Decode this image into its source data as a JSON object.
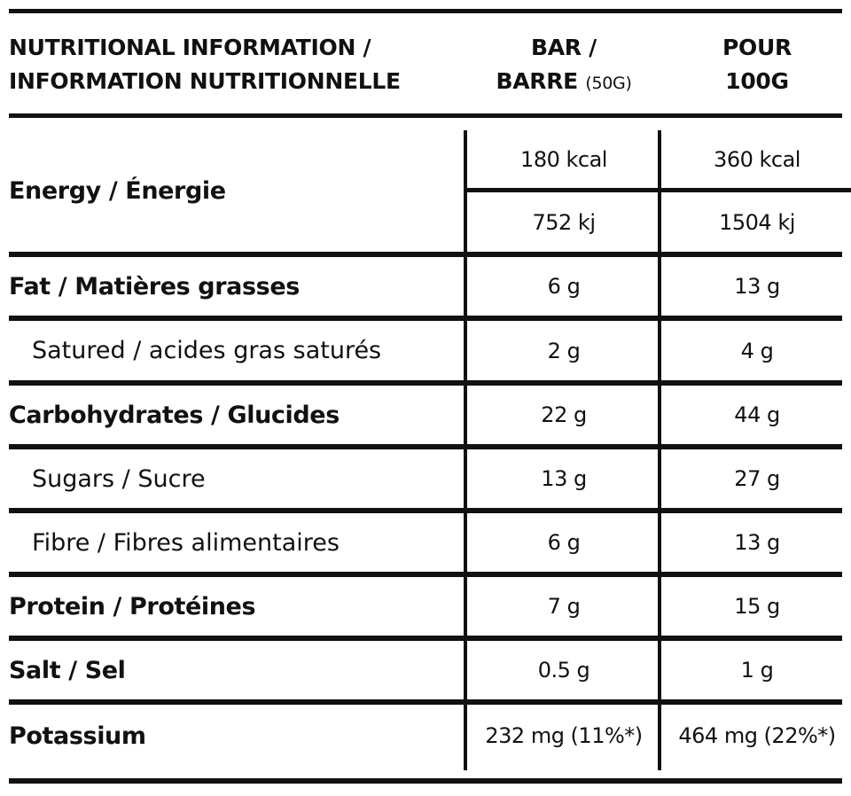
{
  "header": {
    "title_line1": "NUTRITIONAL INFORMATION /",
    "title_line2": "INFORMATION NUTRITIONNELLE",
    "col1_line1": "BAR /",
    "col1_line2": "BARRE",
    "col1_suffix": "(50G)",
    "col2_line1": "POUR",
    "col2_line2": "100G"
  },
  "rows": [
    {
      "label": "Energy / Énergie",
      "bar": "180 kcal",
      "per100": "360 kcal",
      "bar2": "752 kj",
      "per1002": "1504 kj"
    },
    {
      "label": "Fat / Matières grasses",
      "bar": "6 g",
      "per100": "13 g"
    },
    {
      "label": "Satured / acides gras saturés",
      "bar": "2 g",
      "per100": "4 g"
    },
    {
      "label": "Carbohydrates / Glucides",
      "bar": "22 g",
      "per100": "44 g"
    },
    {
      "label": "Sugars / Sucre",
      "bar": "13 g",
      "per100": "27 g"
    },
    {
      "label": "Fibre / Fibres alimentaires",
      "bar": "6 g",
      "per100": "13 g"
    },
    {
      "label": "Protein / Protéines",
      "bar": "7 g",
      "per100": "15 g"
    },
    {
      "label": "Salt / Sel",
      "bar": "0.5 g",
      "per100": "1 g"
    },
    {
      "label": "Potassium",
      "bar": "232 mg (11%*)",
      "per100": "464 mg (22%*)"
    }
  ]
}
